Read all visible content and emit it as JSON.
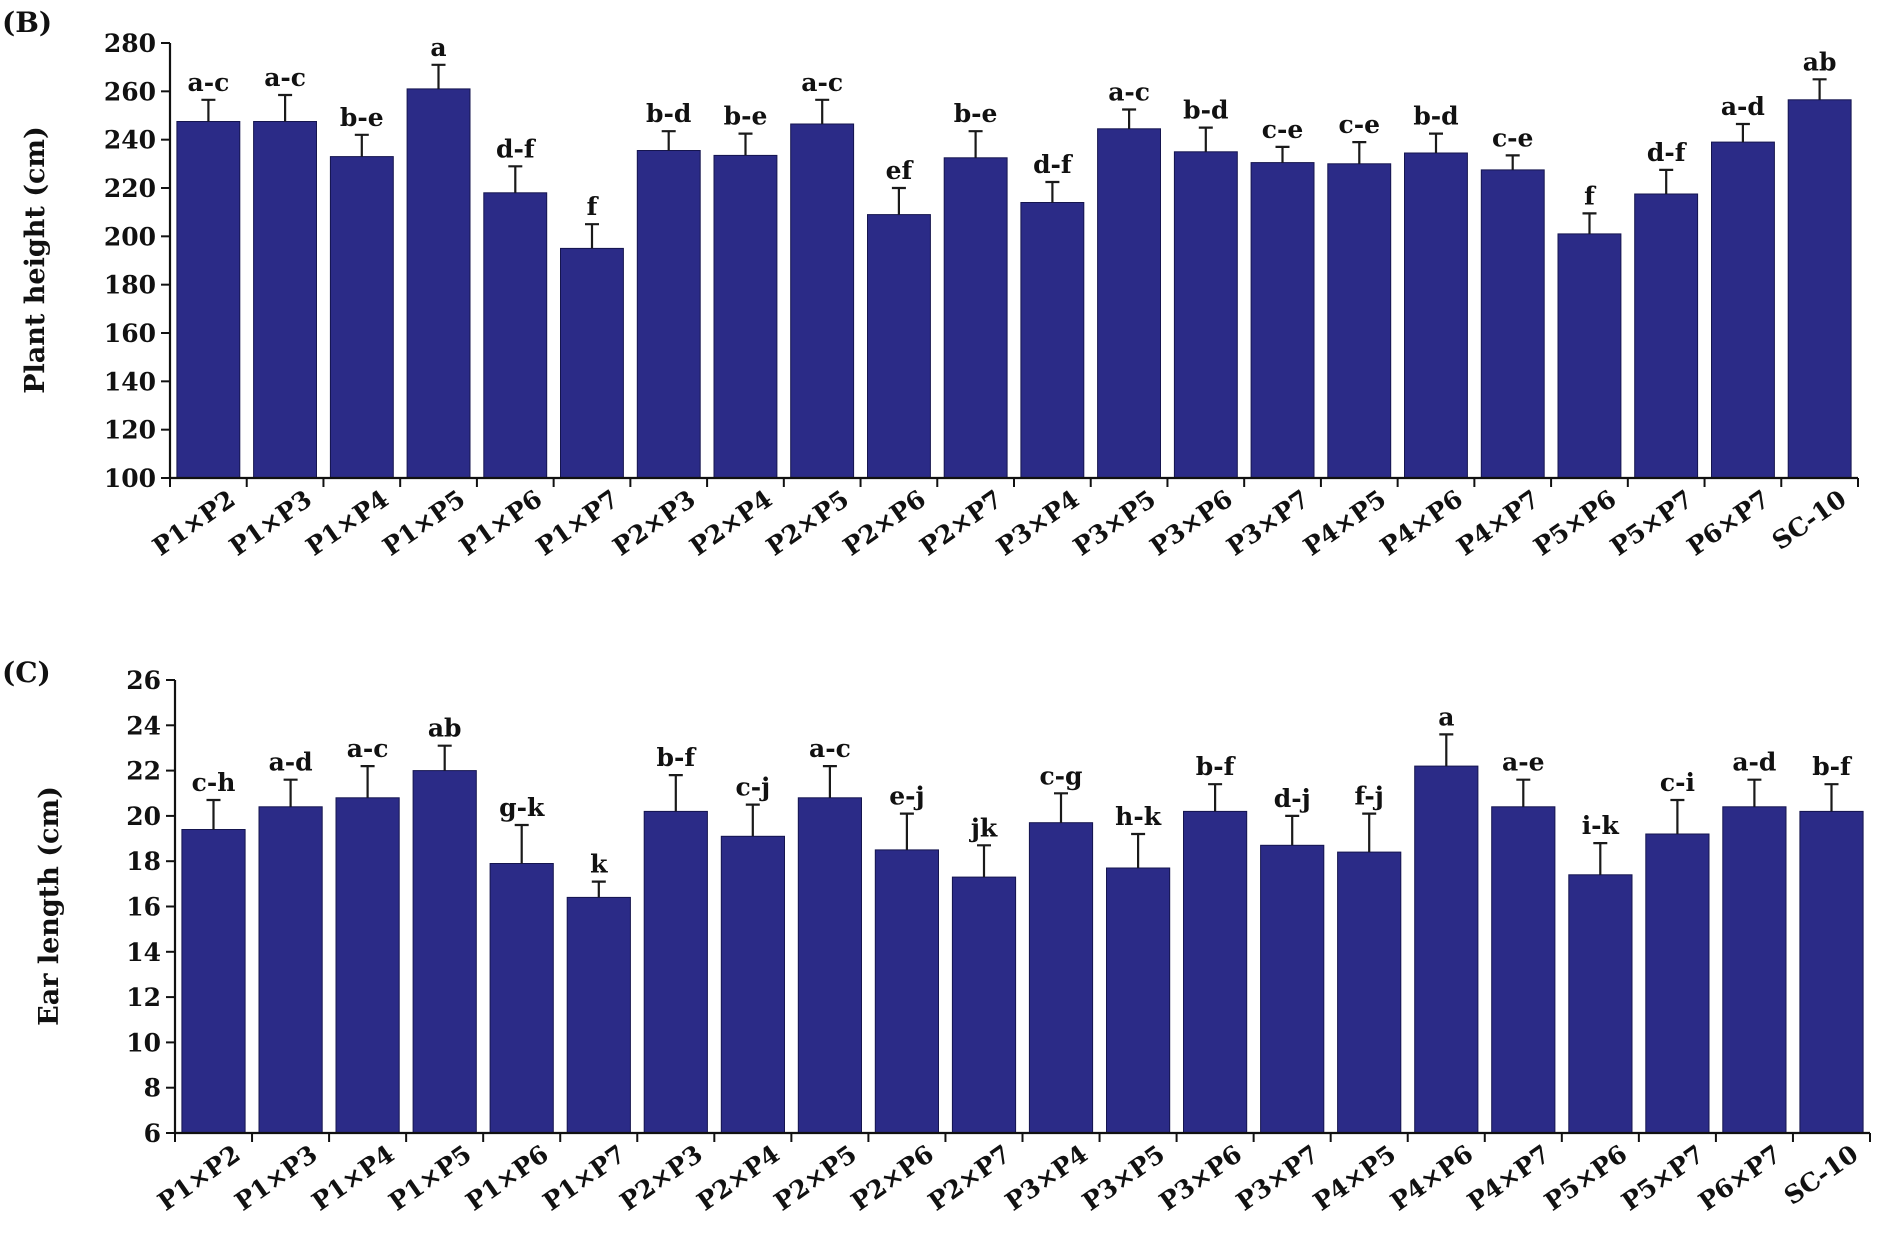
{
  "colors": {
    "bar": "#2b2b87",
    "bar_edge": "#15154f",
    "axis": "#111111"
  },
  "chart_data": [
    {
      "type": "bar",
      "panel_label": "(B)",
      "title": "",
      "xlabel": "",
      "ylabel": "Plant height (cm)",
      "ylim": [
        100,
        280
      ],
      "yticks": [
        100,
        120,
        140,
        160,
        180,
        200,
        220,
        240,
        260,
        280
      ],
      "grid": false,
      "categories": [
        "P1×P2",
        "P1×P3",
        "P1×P4",
        "P1×P5",
        "P1×P6",
        "P1×P7",
        "P2×P3",
        "P2×P4",
        "P2×P5",
        "P2×P6",
        "P2×P7",
        "P3×P4",
        "P3×P5",
        "P3×P6",
        "P3×P7",
        "P4×P5",
        "P4×P6",
        "P4×P7",
        "P5×P6",
        "P5×P7",
        "P6×P7",
        "SC-10"
      ],
      "values": [
        247.5,
        247.5,
        233,
        261,
        218,
        195,
        235.5,
        233.5,
        246.5,
        209,
        232.5,
        214,
        244.5,
        235,
        230.5,
        230,
        234.5,
        227.5,
        201,
        217.5,
        239,
        256.5
      ],
      "errors": [
        9,
        11,
        9,
        10,
        11,
        10,
        8,
        9,
        10,
        11,
        11,
        8.5,
        8,
        10,
        6.5,
        9,
        8,
        6,
        8.5,
        10,
        7.5,
        8.5
      ],
      "significance_letters": [
        "a-c",
        "a-c",
        "b-e",
        "a",
        "d-f",
        "f",
        "b-d",
        "b-e",
        "a-c",
        "ef",
        "b-e",
        "d-f",
        "a-c",
        "b-d",
        "c-e",
        "c-e",
        "b-d",
        "c-e",
        "f",
        "d-f",
        "a-d",
        "ab"
      ]
    },
    {
      "type": "bar",
      "panel_label": "(C)",
      "title": "",
      "xlabel": "",
      "ylabel": "Ear length (cm)",
      "ylim": [
        6,
        26
      ],
      "yticks": [
        6,
        8,
        10,
        12,
        14,
        16,
        18,
        20,
        22,
        24,
        26
      ],
      "grid": false,
      "categories": [
        "P1×P2",
        "P1×P3",
        "P1×P4",
        "P1×P5",
        "P1×P6",
        "P1×P7",
        "P2×P3",
        "P2×P4",
        "P2×P5",
        "P2×P6",
        "P2×P7",
        "P3×P4",
        "P3×P5",
        "P3×P6",
        "P3×P7",
        "P4×P5",
        "P4×P6",
        "P4×P7",
        "P5×P6",
        "P5×P7",
        "P6×P7",
        "SC-10"
      ],
      "values": [
        19.4,
        20.4,
        20.8,
        22.0,
        17.9,
        16.4,
        20.2,
        19.1,
        20.8,
        18.5,
        17.3,
        19.7,
        17.7,
        20.2,
        18.7,
        18.4,
        22.2,
        20.4,
        17.4,
        19.2,
        20.4,
        20.2
      ],
      "errors": [
        1.3,
        1.2,
        1.4,
        1.1,
        1.7,
        0.7,
        1.6,
        1.4,
        1.4,
        1.6,
        1.4,
        1.3,
        1.5,
        1.2,
        1.3,
        1.7,
        1.4,
        1.2,
        1.4,
        1.5,
        1.2,
        1.2
      ],
      "significance_letters": [
        "c-h",
        "a-d",
        "a-c",
        "ab",
        "g-k",
        "k",
        "b-f",
        "c-j",
        "a-c",
        "e-j",
        "jk",
        "c-g",
        "h-k",
        "b-f",
        "d-j",
        "f-j",
        "a",
        "a-e",
        "i-k",
        "c-i",
        "a-d",
        "b-f"
      ]
    }
  ]
}
